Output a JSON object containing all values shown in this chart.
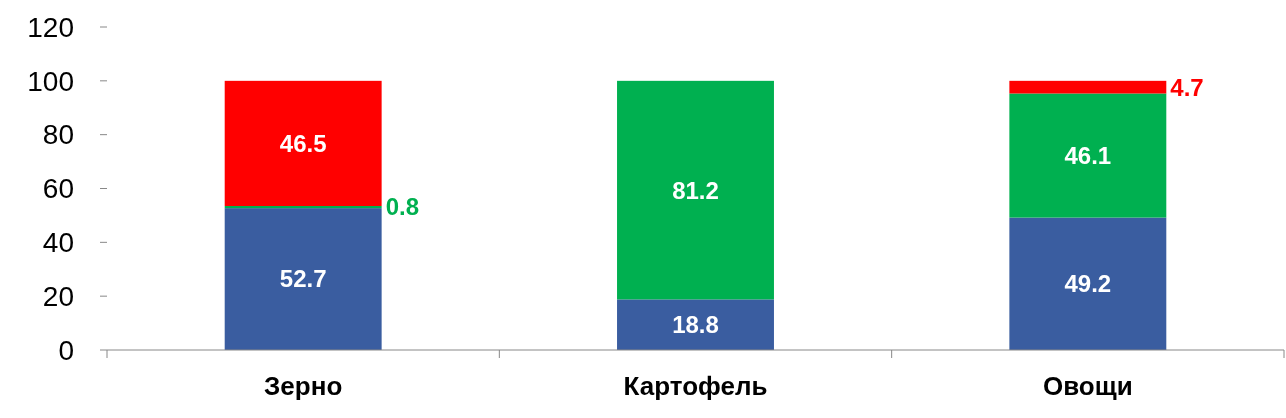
{
  "chart_data": {
    "type": "bar",
    "stacked": true,
    "categories": [
      "Зерно",
      "Картофель",
      "Овощи"
    ],
    "ylim": [
      0,
      120
    ],
    "yticks": [
      0,
      20,
      40,
      60,
      80,
      100,
      120
    ],
    "series": [
      {
        "color": "#3a5da0",
        "values": [
          52.7,
          18.8,
          49.2
        ],
        "value_labels": [
          "52.7",
          "18.8",
          "49.2"
        ]
      },
      {
        "color": "#00b050",
        "values": [
          0.8,
          81.2,
          46.1
        ],
        "value_labels": [
          "0.8",
          "81.2",
          "46.1"
        ]
      },
      {
        "color": "#ff0000",
        "values": [
          46.5,
          0,
          4.7
        ],
        "value_labels": [
          "46.5",
          null,
          "4.7"
        ]
      }
    ]
  }
}
